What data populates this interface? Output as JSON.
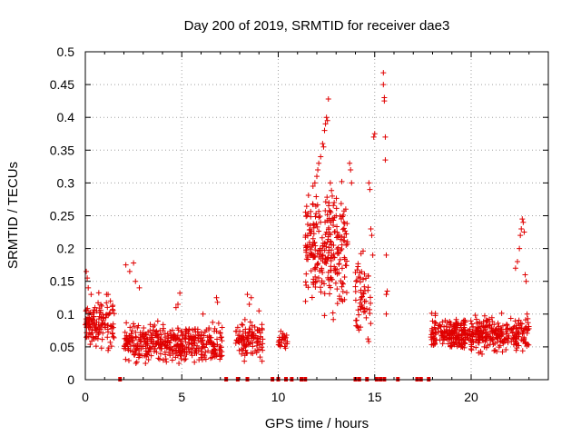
{
  "chart_data": {
    "type": "scatter",
    "title": "Day 200 of 2019, SRMTID for receiver dae3",
    "xlabel": "GPS time / hours",
    "ylabel": "SRMTID / TECUs",
    "xlim": [
      0,
      24
    ],
    "ylim": [
      0,
      0.5
    ],
    "xticks": [
      0,
      5,
      10,
      15,
      20
    ],
    "xtick_labels": [
      "0",
      "5",
      "10",
      "15",
      "20"
    ],
    "yticks": [
      0,
      0.05,
      0.1,
      0.15,
      0.2,
      0.25,
      0.3,
      0.35,
      0.4,
      0.45,
      0.5
    ],
    "ytick_labels": [
      "0",
      "0.05",
      "0.1",
      "0.15",
      "0.2",
      "0.25",
      "0.3",
      "0.35",
      "0.4",
      "0.45",
      "0.5"
    ],
    "grid": true,
    "series_color": "#e00000",
    "marker": "plus",
    "segments": [
      {
        "t0": 0.0,
        "t1": 1.5,
        "base": 0.085,
        "spread": 0.03,
        "count": 130
      },
      {
        "t0": 2.0,
        "t1": 7.1,
        "base": 0.055,
        "spread": 0.022,
        "count": 420
      },
      {
        "t0": 7.8,
        "t1": 9.2,
        "base": 0.06,
        "spread": 0.025,
        "count": 110
      },
      {
        "t0": 10.0,
        "t1": 10.5,
        "base": 0.06,
        "spread": 0.012,
        "count": 25
      },
      {
        "t0": 11.4,
        "t1": 13.6,
        "base": 0.2,
        "spread": 0.07,
        "count": 260
      },
      {
        "t0": 14.0,
        "t1": 14.8,
        "base": 0.12,
        "spread": 0.05,
        "count": 60
      },
      {
        "t0": 17.9,
        "t1": 23.0,
        "base": 0.07,
        "spread": 0.02,
        "count": 450
      }
    ],
    "points": [
      [
        0.05,
        0.165
      ],
      [
        0.1,
        0.155
      ],
      [
        0.15,
        0.14
      ],
      [
        0.3,
        0.13
      ],
      [
        0.5,
        0.11
      ],
      [
        1.1,
        0.13
      ],
      [
        1.3,
        0.12
      ],
      [
        2.1,
        0.175
      ],
      [
        2.3,
        0.165
      ],
      [
        2.5,
        0.178
      ],
      [
        2.6,
        0.15
      ],
      [
        2.8,
        0.14
      ],
      [
        4.7,
        0.11
      ],
      [
        4.8,
        0.115
      ],
      [
        4.9,
        0.132
      ],
      [
        6.1,
        0.1
      ],
      [
        6.8,
        0.125
      ],
      [
        6.85,
        0.118
      ],
      [
        8.4,
        0.13
      ],
      [
        8.5,
        0.115
      ],
      [
        8.6,
        0.125
      ],
      [
        9.0,
        0.105
      ],
      [
        11.8,
        0.295
      ],
      [
        11.9,
        0.3
      ],
      [
        12.0,
        0.31
      ],
      [
        12.05,
        0.32
      ],
      [
        12.1,
        0.33
      ],
      [
        12.2,
        0.34
      ],
      [
        12.3,
        0.36
      ],
      [
        12.35,
        0.355
      ],
      [
        12.4,
        0.38
      ],
      [
        12.45,
        0.39
      ],
      [
        12.5,
        0.4
      ],
      [
        12.55,
        0.395
      ],
      [
        12.6,
        0.428
      ],
      [
        12.7,
        0.3
      ],
      [
        12.8,
        0.28
      ],
      [
        12.9,
        0.27
      ],
      [
        13.0,
        0.25
      ],
      [
        13.1,
        0.22
      ],
      [
        13.4,
        0.24
      ],
      [
        13.5,
        0.26
      ],
      [
        13.7,
        0.33
      ],
      [
        13.75,
        0.32
      ],
      [
        13.8,
        0.3
      ],
      [
        14.7,
        0.3
      ],
      [
        14.75,
        0.29
      ],
      [
        14.8,
        0.23
      ],
      [
        14.85,
        0.22
      ],
      [
        14.9,
        0.19
      ],
      [
        14.95,
        0.37
      ],
      [
        15.0,
        0.375
      ],
      [
        15.45,
        0.468
      ],
      [
        15.45,
        0.45
      ],
      [
        15.5,
        0.43
      ],
      [
        15.5,
        0.425
      ],
      [
        15.55,
        0.37
      ],
      [
        15.55,
        0.335
      ],
      [
        15.6,
        0.19
      ],
      [
        15.65,
        0.135
      ],
      [
        15.6,
        0.13
      ],
      [
        15.6,
        0.1
      ],
      [
        22.3,
        0.17
      ],
      [
        22.4,
        0.18
      ],
      [
        22.5,
        0.2
      ],
      [
        22.55,
        0.22
      ],
      [
        22.6,
        0.23
      ],
      [
        22.65,
        0.245
      ],
      [
        22.7,
        0.24
      ],
      [
        22.75,
        0.225
      ],
      [
        22.8,
        0.16
      ],
      [
        22.85,
        0.15
      ],
      [
        22.9,
        0.1
      ]
    ],
    "gap_markers": [
      1.8,
      7.3,
      7.9,
      8.4,
      9.7,
      10.0,
      10.4,
      10.7,
      11.2,
      11.4,
      14.0,
      14.2,
      14.6,
      15.1,
      15.3,
      15.5,
      16.2,
      17.2,
      17.4,
      17.8
    ]
  }
}
